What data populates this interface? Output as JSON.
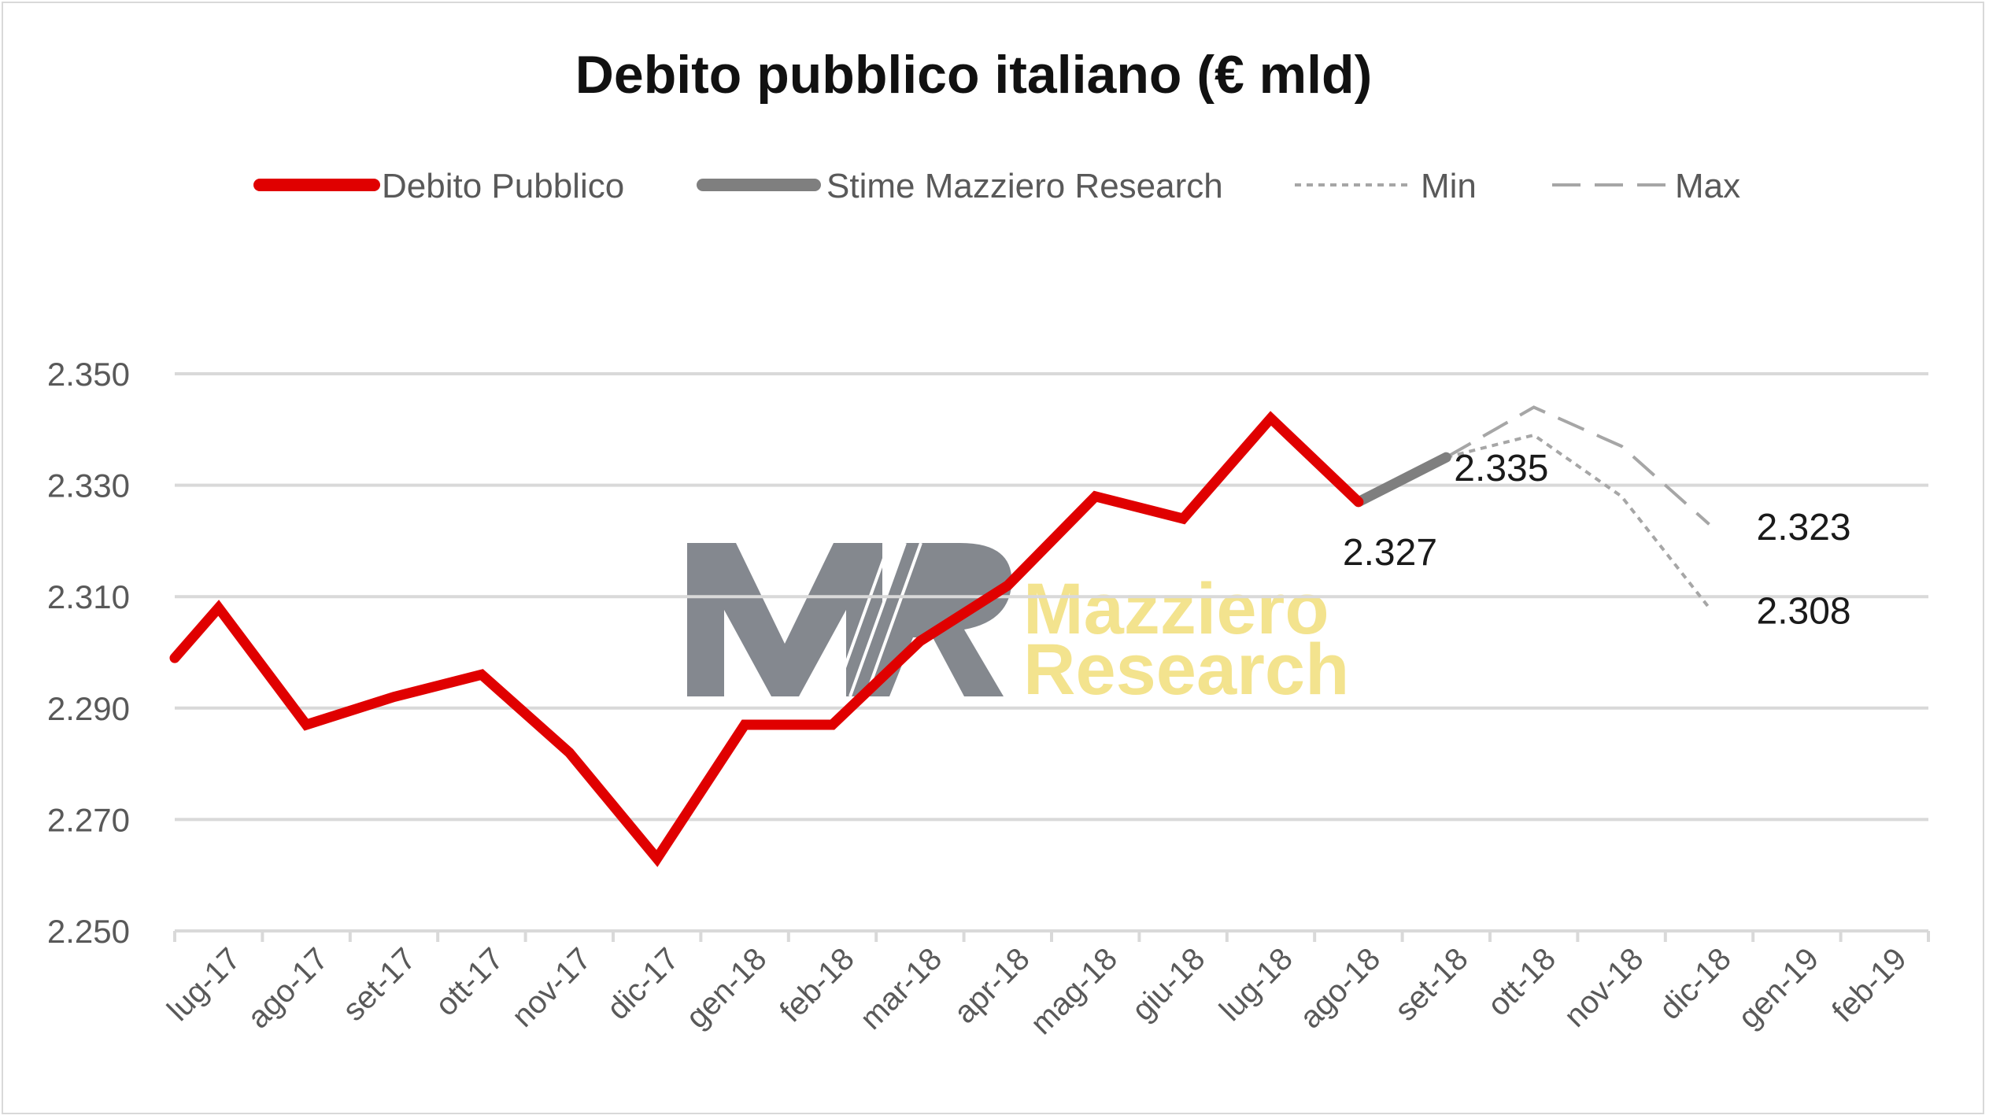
{
  "chart_data": {
    "type": "line",
    "title": "Debito pubblico italiano (€ mld)",
    "xlabel": "",
    "ylabel": "",
    "categories": [
      "lug-17",
      "ago-17",
      "set-17",
      "ott-17",
      "nov-17",
      "dic-17",
      "gen-18",
      "feb-18",
      "mar-18",
      "apr-18",
      "mag-18",
      "giu-18",
      "lug-18",
      "ago-18",
      "set-18",
      "ott-18",
      "nov-18",
      "dic-18",
      "gen-19",
      "feb-19"
    ],
    "ylim": [
      2250,
      2350
    ],
    "yticks": [
      2250,
      2270,
      2290,
      2310,
      2330,
      2350
    ],
    "ytick_labels": [
      "2.250",
      "2.270",
      "2.290",
      "2.310",
      "2.330",
      "2.350"
    ],
    "grid": "horizontal",
    "legend_position": "top",
    "series": [
      {
        "name": "Debito Pubblico",
        "color": "#e00000",
        "style": "solid-thick",
        "points": [
          {
            "x": "lug-17",
            "y": 2299
          },
          {
            "x": "lug-17",
            "y": 2308,
            "offset": 0.5
          },
          {
            "x": "ago-17",
            "y": 2287,
            "offset": 0.5
          },
          {
            "x": "set-17",
            "y": 2292,
            "offset": 0.5
          },
          {
            "x": "ott-17",
            "y": 2296,
            "offset": 0.5
          },
          {
            "x": "nov-17",
            "y": 2282,
            "offset": 0.5
          },
          {
            "x": "dic-17",
            "y": 2263,
            "offset": 0.5
          },
          {
            "x": "gen-18",
            "y": 2287,
            "offset": 0.5
          },
          {
            "x": "feb-18",
            "y": 2287,
            "offset": 0.5
          },
          {
            "x": "mar-18",
            "y": 2302,
            "offset": 0.5
          },
          {
            "x": "apr-18",
            "y": 2312,
            "offset": 0.5
          },
          {
            "x": "mag-18",
            "y": 2328,
            "offset": 0.5
          },
          {
            "x": "giu-18",
            "y": 2324,
            "offset": 0.5
          },
          {
            "x": "lug-18",
            "y": 2342,
            "offset": 0.5
          },
          {
            "x": "ago-18",
            "y": 2327,
            "offset": 0.5
          }
        ]
      },
      {
        "name": "Stime Mazziero Research",
        "color": "#7f7f7f",
        "style": "solid-thick",
        "points": [
          {
            "x": "ago-18",
            "y": 2327,
            "offset": 0.5
          },
          {
            "x": "set-18",
            "y": 2335,
            "offset": 0.5
          }
        ]
      },
      {
        "name": "Min",
        "color": "#a6a6a6",
        "style": "dotted",
        "points": [
          {
            "x": "set-18",
            "y": 2335,
            "offset": 0.5
          },
          {
            "x": "ott-18",
            "y": 2339,
            "offset": 0.5
          },
          {
            "x": "nov-18",
            "y": 2328,
            "offset": 0.5
          },
          {
            "x": "dic-18",
            "y": 2308,
            "offset": 0.5
          }
        ]
      },
      {
        "name": "Max",
        "color": "#a6a6a6",
        "style": "dashed",
        "points": [
          {
            "x": "set-18",
            "y": 2335,
            "offset": 0.5
          },
          {
            "x": "ott-18",
            "y": 2344,
            "offset": 0.5
          },
          {
            "x": "nov-18",
            "y": 2337,
            "offset": 0.5
          },
          {
            "x": "dic-18",
            "y": 2323,
            "offset": 0.5
          }
        ]
      }
    ],
    "annotations": [
      {
        "text": "2.327",
        "x": "ago-18",
        "y": 2327
      },
      {
        "text": "2.335",
        "x": "set-18",
        "y": 2335
      },
      {
        "text": "2.323",
        "x": "dic-18",
        "y": 2323
      },
      {
        "text": "2.308",
        "x": "dic-18",
        "y": 2308
      }
    ]
  },
  "watermark": {
    "logo_letters": "MR",
    "line1": "Mazziero",
    "line2": "Research"
  }
}
